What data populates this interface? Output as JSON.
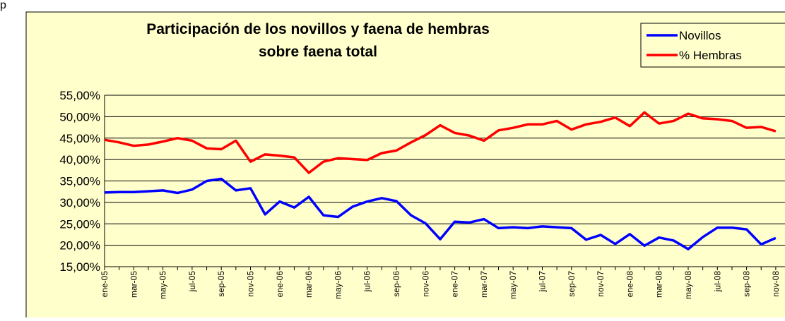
{
  "fragment": "p",
  "chart_data": {
    "type": "line",
    "title": "Participación de los novillos y faena de hembras",
    "subtitle": "sobre faena total",
    "categories": [
      "ene-05",
      null,
      "mar-05",
      null,
      "may-05",
      null,
      "jul-05",
      null,
      "sep-05",
      null,
      "nov-05",
      null,
      "ene-06",
      null,
      "mar-06",
      null,
      "may-06",
      null,
      "jul-06",
      null,
      "sep-06",
      null,
      "nov-06",
      null,
      "ene-07",
      null,
      "mar-07",
      null,
      "may-07",
      null,
      "jul-07",
      null,
      "sep-07",
      null,
      "nov-07",
      null,
      "ene-08",
      null,
      "mar-08",
      null,
      "may-08",
      null,
      "jul-08",
      null,
      "sep-08",
      null,
      "nov-08"
    ],
    "series": [
      {
        "name": "Novillos",
        "color": "#0000ff",
        "values": [
          32.3,
          32.4,
          32.4,
          32.6,
          32.8,
          32.2,
          33,
          35,
          35.5,
          32.8,
          33.3,
          27.2,
          30.2,
          28.8,
          31.3,
          27,
          26.6,
          29,
          30.2,
          31,
          30.3,
          27,
          25.1,
          21.4,
          25.5,
          25.3,
          26.1,
          24,
          24.2,
          24,
          24.4,
          24.2,
          24,
          21.3,
          22.4,
          20.3,
          22.6,
          19.9,
          21.8,
          21.1,
          19.1,
          21.9,
          24.1,
          24.1,
          23.7,
          20.2,
          21.7
        ]
      },
      {
        "name": "% Hembras",
        "color": "#ff0000",
        "values": [
          44.6,
          44,
          43.2,
          43.5,
          44.2,
          45,
          44.4,
          42.6,
          42.4,
          44.4,
          39.5,
          41.2,
          40.9,
          40.5,
          36.9,
          39.5,
          40.3,
          40.1,
          39.9,
          41.5,
          42.1,
          44,
          45.7,
          48,
          46.2,
          45.6,
          44.4,
          46.8,
          47.4,
          48.2,
          48.2,
          49,
          47,
          48.2,
          48.8,
          49.8,
          47.8,
          51,
          48.4,
          49,
          50.7,
          49.6,
          49.4,
          49,
          47.4,
          47.6,
          46.6
        ]
      }
    ],
    "ylim": [
      15,
      55
    ],
    "yticks": [
      {
        "value": 15,
        "label": "15,00%"
      },
      {
        "value": 20,
        "label": "20,00%"
      },
      {
        "value": 25,
        "label": "25,00%"
      },
      {
        "value": 30,
        "label": "30,00%"
      },
      {
        "value": 35,
        "label": "35,00%"
      },
      {
        "value": 40,
        "label": "40,00%"
      },
      {
        "value": 45,
        "label": "45,00%"
      },
      {
        "value": 50,
        "label": "50,00%"
      },
      {
        "value": 55,
        "label": "55,00%"
      }
    ],
    "grid": true,
    "legend": "top-right",
    "background": "#ffffcc"
  }
}
